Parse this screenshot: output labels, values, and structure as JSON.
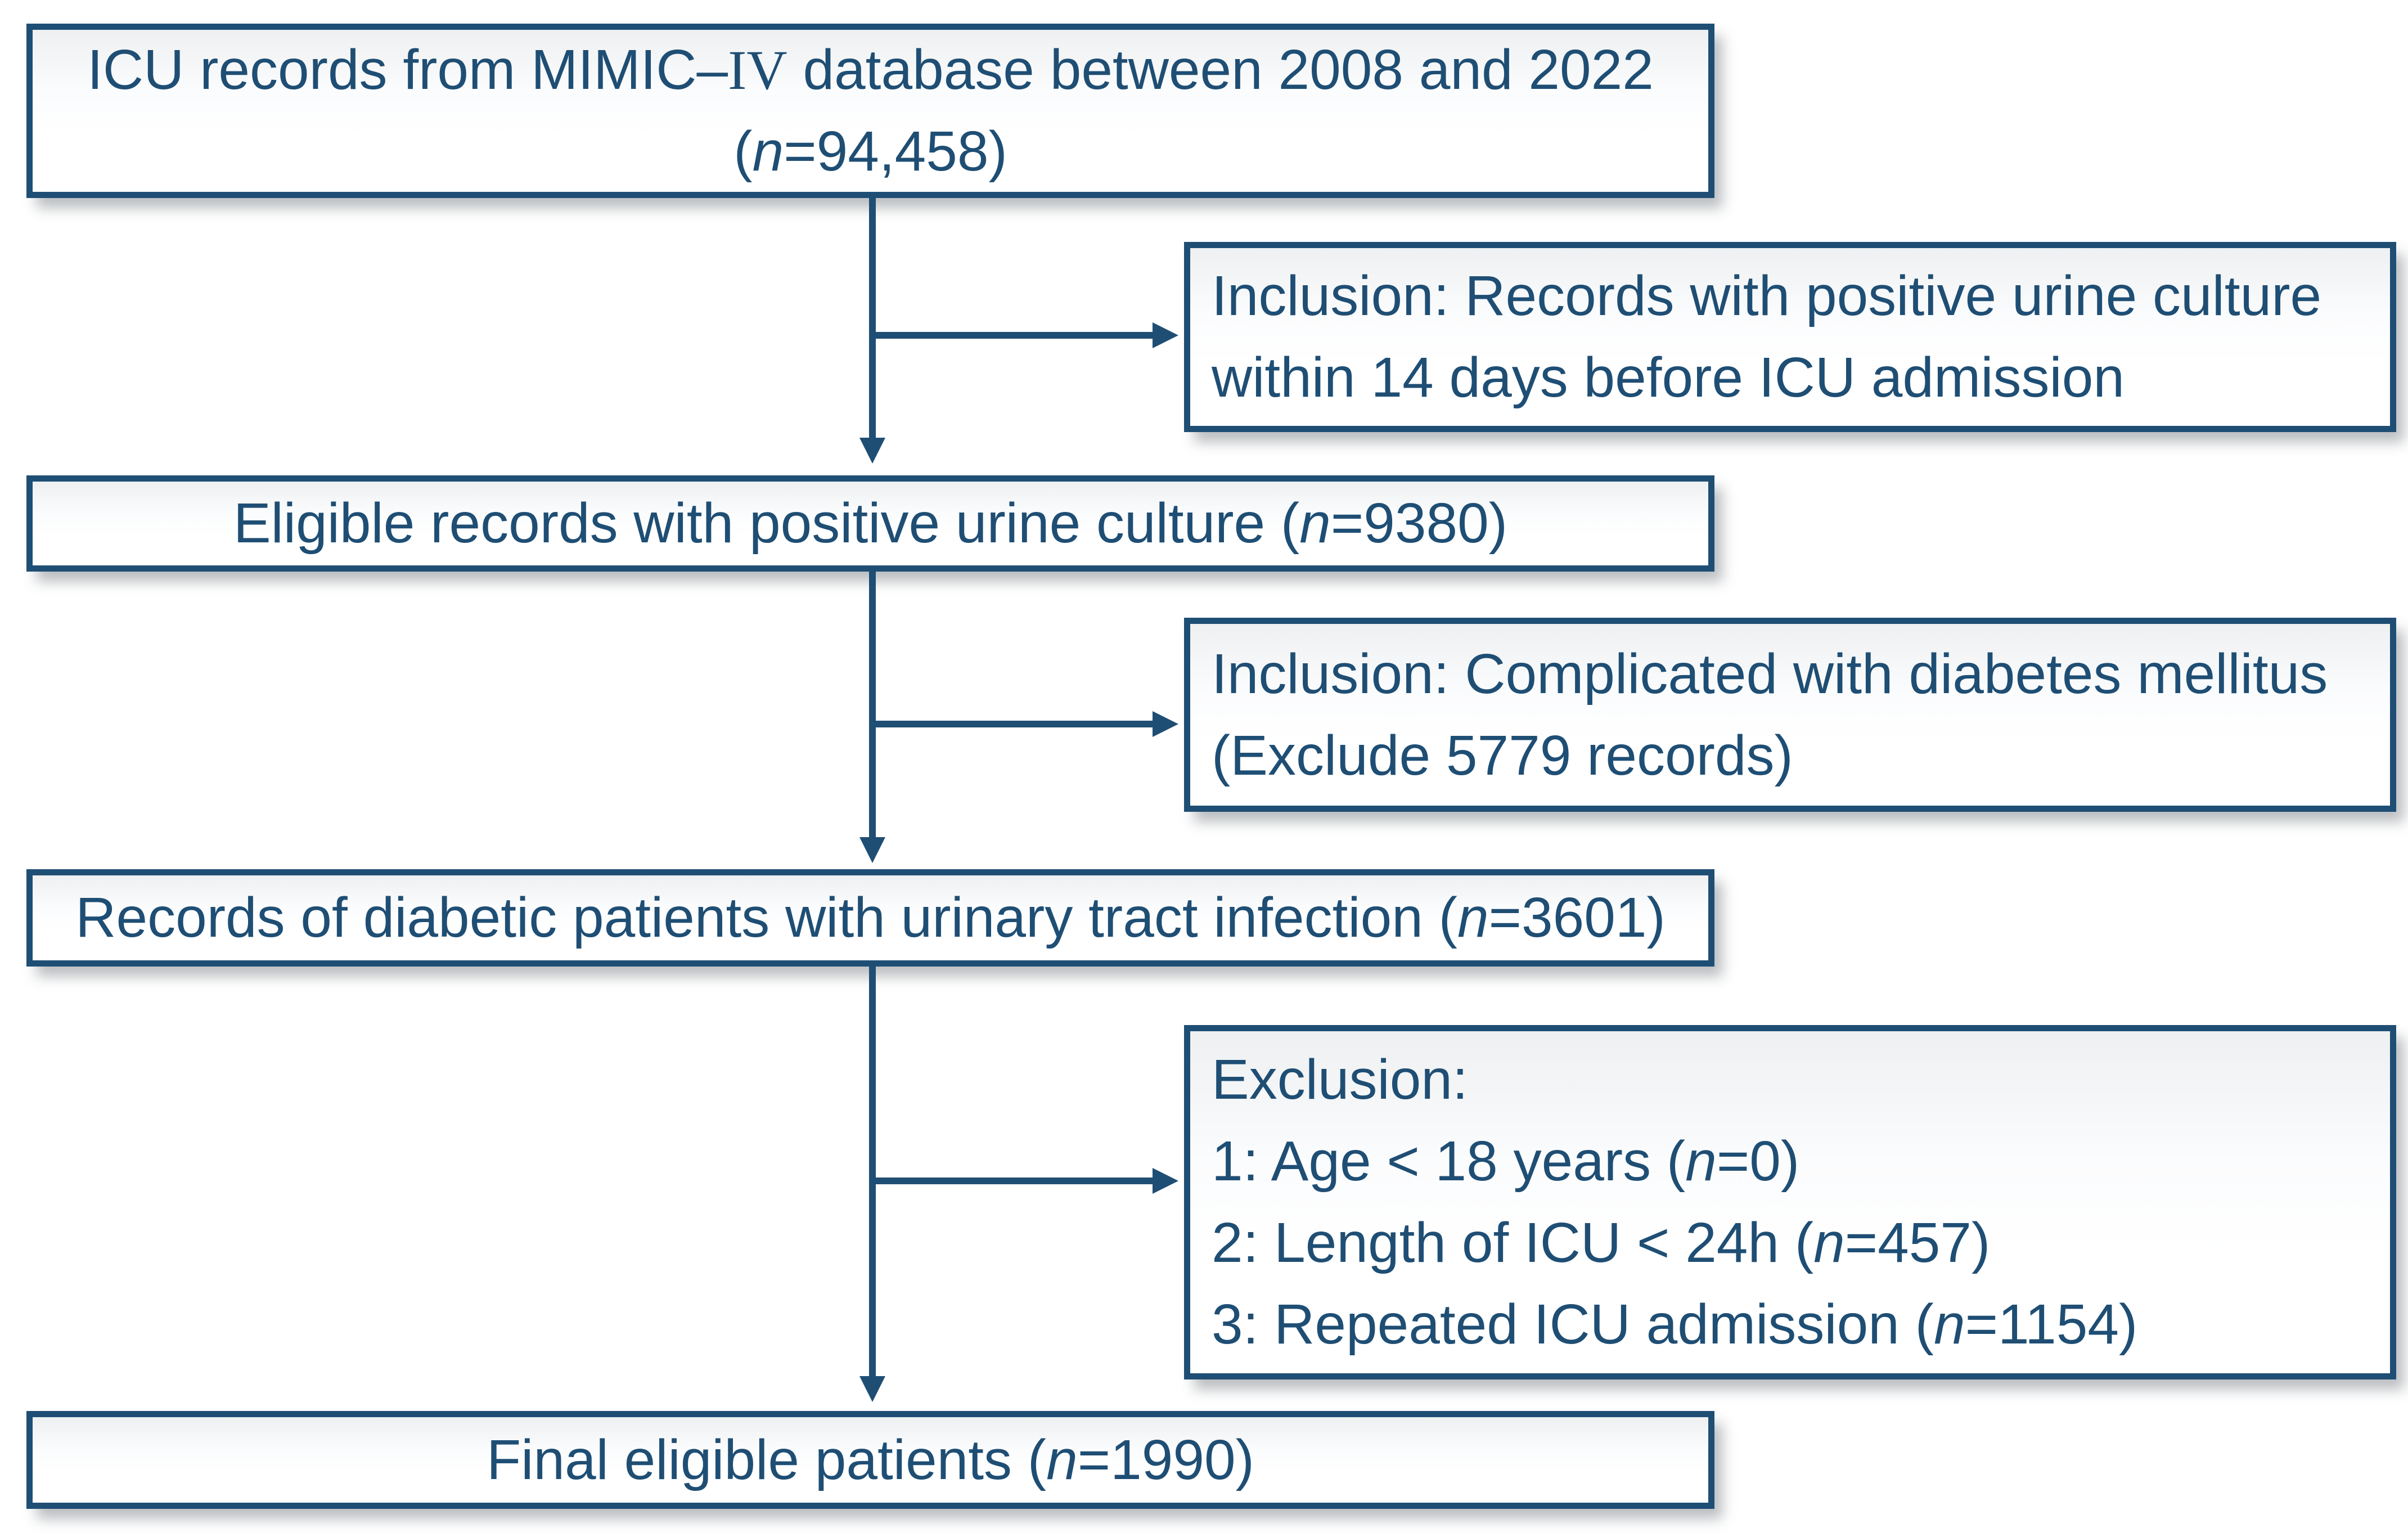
{
  "colors": {
    "accent": "#1F4E74",
    "box_background": "#FFFFFF"
  },
  "boxes": [
    {
      "id": "icu-records",
      "segments": [
        {
          "t": "ICU records from MIMIC–"
        },
        {
          "t": "IV",
          "s": "serif"
        },
        {
          "t": " database between 2008 and 2022"
        },
        {
          "br": true
        },
        {
          "t": "("
        },
        {
          "t": "n",
          "s": "i"
        },
        {
          "t": "=94,458)"
        }
      ]
    },
    {
      "id": "inclusion-urine-culture",
      "segments": [
        {
          "t": "Inclusion: Records with positive urine culture"
        },
        {
          "br": true
        },
        {
          "t": "within 14 days before ICU admission"
        }
      ]
    },
    {
      "id": "eligible-records",
      "segments": [
        {
          "t": "Eligible records with positive urine culture ("
        },
        {
          "t": "n",
          "s": "i"
        },
        {
          "t": "=9380)"
        }
      ]
    },
    {
      "id": "inclusion-diabetes",
      "segments": [
        {
          "t": "Inclusion: Complicated with diabetes mellitus"
        },
        {
          "br": true
        },
        {
          "t": "(Exclude 5779 records)"
        }
      ]
    },
    {
      "id": "diabetic-uti-records",
      "segments": [
        {
          "t": "Records of diabetic patients with urinary tract infection ("
        },
        {
          "t": "n",
          "s": "i"
        },
        {
          "t": "=3601)"
        }
      ]
    },
    {
      "id": "exclusion",
      "segments": [
        {
          "t": "Exclusion:"
        },
        {
          "br": true
        },
        {
          "t": "1: Age < 18 years ("
        },
        {
          "t": "n",
          "s": "i"
        },
        {
          "t": "=0)"
        },
        {
          "br": true
        },
        {
          "t": "2: Length of ICU < 24h ("
        },
        {
          "t": "n",
          "s": "i"
        },
        {
          "t": "=457)"
        },
        {
          "br": true
        },
        {
          "t": "3: Repeated ICU admission ("
        },
        {
          "t": "n",
          "s": "i"
        },
        {
          "t": "=1154)"
        }
      ]
    },
    {
      "id": "final-patients",
      "segments": [
        {
          "t": "Final eligible patients ("
        },
        {
          "t": "n",
          "s": "i"
        },
        {
          "t": "=1990)"
        }
      ]
    }
  ]
}
